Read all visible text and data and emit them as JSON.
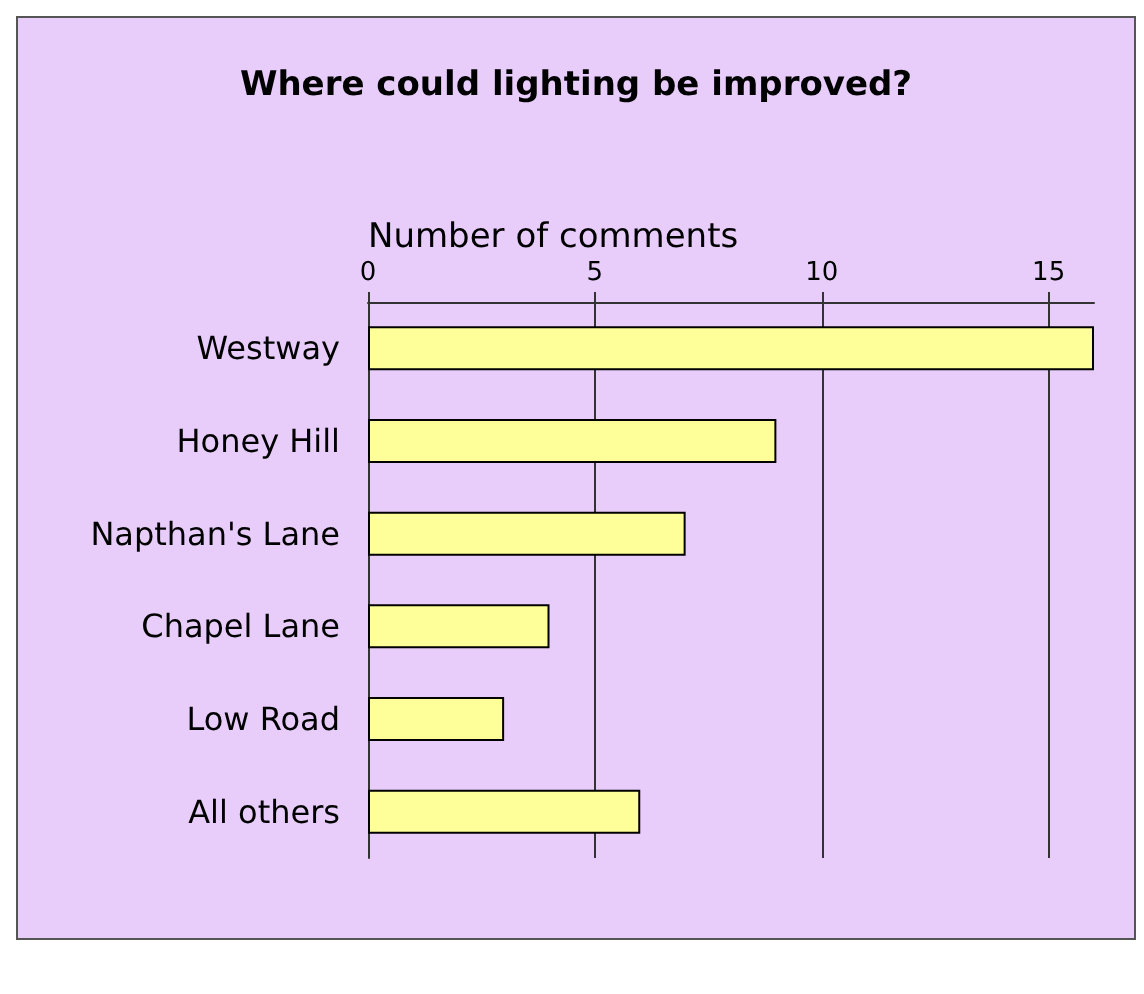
{
  "chart_data": {
    "type": "bar",
    "orientation": "horizontal",
    "title": "Where could lighting be improved?",
    "xlabel": "Number of comments",
    "categories": [
      "Westway",
      "Honey Hill",
      "Napthan's Lane",
      "Chapel Lane",
      "Low Road",
      "All others"
    ],
    "values": [
      16,
      9,
      7,
      4,
      3,
      6
    ],
    "color": "#ffff99",
    "xlim": [
      0,
      16
    ],
    "xticks": [
      0,
      5,
      10,
      15
    ],
    "grid": "x"
  }
}
